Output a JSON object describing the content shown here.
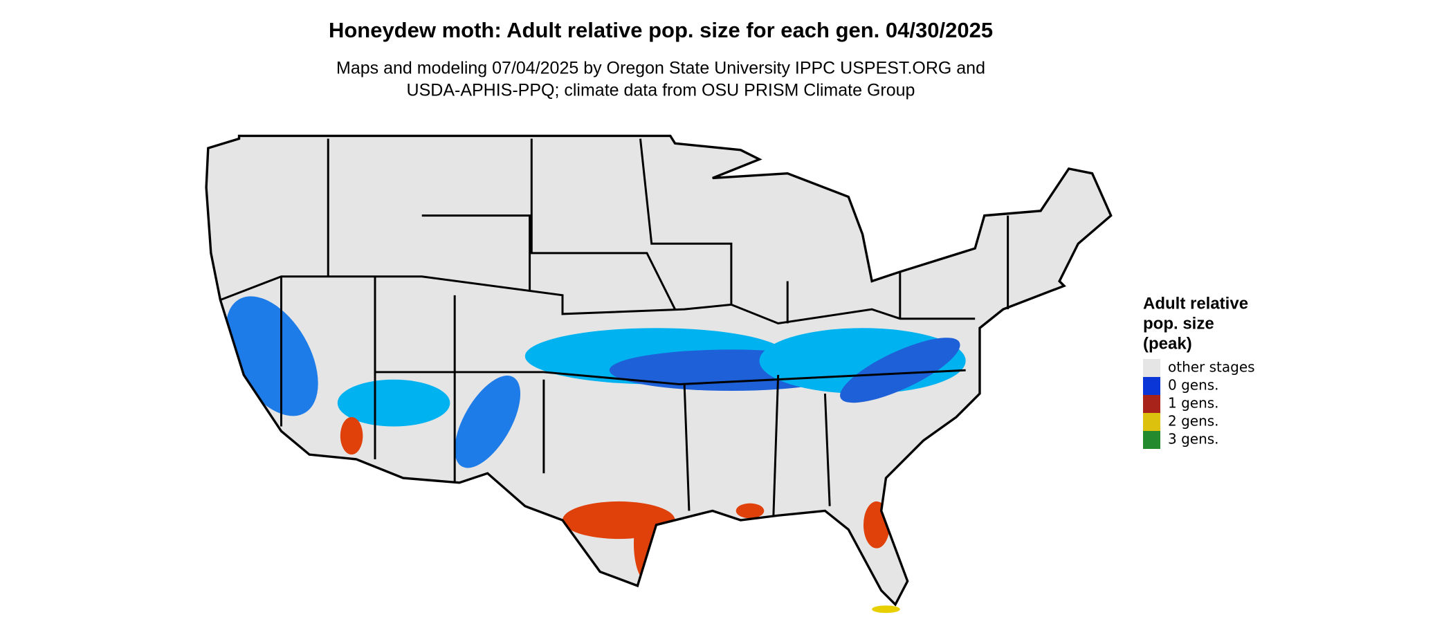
{
  "title": "Honeydew moth: Adult relative pop. size for each gen. 04/30/2025",
  "subtitle": [
    "Maps and modeling 07/04/2025 by Oregon State University IPPC USPEST.ORG and",
    "USDA-APHIS-PPQ; climate data from OSU PRISM Climate Group"
  ],
  "legend": {
    "title": [
      "Adult relative",
      "pop. size",
      "(peak)"
    ],
    "items": [
      {
        "label": "other stages",
        "color": "#e5e5e5"
      },
      {
        "label": "0 gens.",
        "color": "#0a36d8"
      },
      {
        "label": "1 gens.",
        "color": "#a8231a"
      },
      {
        "label": "2 gens.",
        "color": "#dcc20e"
      },
      {
        "label": "3 gens.",
        "color": "#238b2e"
      }
    ]
  }
}
